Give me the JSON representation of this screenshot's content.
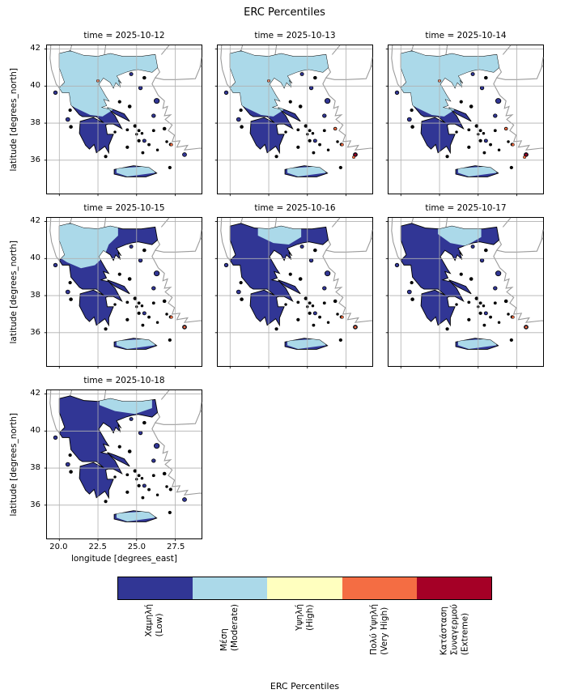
{
  "figure": {
    "title": "ERC Percentiles"
  },
  "axes": {
    "xlabel": "longitude [degrees_east]",
    "ylabel": "latitude [degrees_north]",
    "xticks": [
      "20.0",
      "22.5",
      "25.0",
      "27.5"
    ],
    "yticks": [
      "42",
      "40",
      "38",
      "36"
    ]
  },
  "panels": [
    {
      "title": "time = 2025-10-12",
      "date": "2025-10-12",
      "moderate_extent": "north-large",
      "hotspots": "few"
    },
    {
      "title": "time = 2025-10-13",
      "date": "2025-10-13",
      "moderate_extent": "north-large",
      "hotspots": "southeast"
    },
    {
      "title": "time = 2025-10-14",
      "date": "2025-10-14",
      "moderate_extent": "north-large",
      "hotspots": "southeast"
    },
    {
      "title": "time = 2025-10-15",
      "date": "2025-10-15",
      "moderate_extent": "northwest-medium",
      "hotspots": "se-small"
    },
    {
      "title": "time = 2025-10-16",
      "date": "2025-10-16",
      "moderate_extent": "north-small",
      "hotspots": "se-small"
    },
    {
      "title": "time = 2025-10-17",
      "date": "2025-10-17",
      "moderate_extent": "north-small-east",
      "hotspots": "se-small"
    },
    {
      "title": "time = 2025-10-18",
      "date": "2025-10-18",
      "moderate_extent": "northeast-small",
      "hotspots": "none"
    }
  ],
  "colorbar": {
    "label": "ERC Percentiles",
    "categories": [
      {
        "key": "low",
        "lines": [
          "Χαμηλή",
          "(Low)"
        ],
        "color": "#313695"
      },
      {
        "key": "moderate",
        "lines": [
          "Μέση",
          "(Moderate)"
        ],
        "color": "#abd9e9"
      },
      {
        "key": "high",
        "lines": [
          "Υψηλή",
          "(High)"
        ],
        "color": "#ffffbf"
      },
      {
        "key": "very_high",
        "lines": [
          "Πολύ Υψηλή",
          "(Very High)"
        ],
        "color": "#f46d43"
      },
      {
        "key": "extreme",
        "lines": [
          "Κατάσταση",
          "Συναγερμού",
          "(Extreme)"
        ],
        "color": "#a50026"
      }
    ]
  },
  "map_colors": {
    "low": "#313695",
    "moderate": "#abd9e9",
    "high": "#ffffbf",
    "very_high": "#f46d43",
    "extreme": "#a50026",
    "coastline": "#000000",
    "neighbor_border": "#9b9b9b",
    "gridline": "#b0b0b0",
    "sea": "#ffffff"
  },
  "chart_data": {
    "type": "heatmap",
    "subtype": "faceted-choropleth-map",
    "title": "ERC Percentiles",
    "region": "Greece",
    "facet_variable": "time",
    "facets": [
      "2025-10-12",
      "2025-10-13",
      "2025-10-14",
      "2025-10-15",
      "2025-10-16",
      "2025-10-17",
      "2025-10-18"
    ],
    "facet_grid": {
      "rows": 3,
      "cols": 3,
      "used_panels": 7
    },
    "xlabel": "longitude [degrees_east]",
    "ylabel": "latitude [degrees_north]",
    "xlim": [
      19.2,
      29.2
    ],
    "ylim": [
      34.4,
      42.2
    ],
    "xticks": [
      20.0,
      22.5,
      25.0,
      27.5
    ],
    "yticks": [
      36,
      38,
      40,
      42
    ],
    "grid": true,
    "legend_position": "bottom-horizontal-colorbar",
    "colorbar_label": "ERC Percentiles",
    "categories": [
      {
        "key": "low",
        "label_el": "Χαμηλή",
        "label_en": "Low",
        "color": "#313695"
      },
      {
        "key": "moderate",
        "label_el": "Μέση",
        "label_en": "Moderate",
        "color": "#abd9e9"
      },
      {
        "key": "high",
        "label_el": "Υψηλή",
        "label_en": "High",
        "color": "#ffffbf"
      },
      {
        "key": "very_high",
        "label_el": "Πολύ Υψηλή",
        "label_en": "Very High",
        "color": "#f46d43"
      },
      {
        "key": "extreme",
        "label_el": "Κατάσταση Συναγερμού",
        "label_en": "Extreme",
        "color": "#a50026"
      }
    ],
    "facet_summaries": [
      {
        "date": "2025-10-12",
        "dominant": "Low",
        "moderate": "northern Greece (Epirus, Macedonia, Thessaly) and Crete",
        "high_or_above": "isolated spots in the northwest and eastern Aegean"
      },
      {
        "date": "2025-10-13",
        "dominant": "Low",
        "moderate": "northern Greece and Crete",
        "high_or_above": "isolated Very High / Extreme spots in the Dodecanese"
      },
      {
        "date": "2025-10-14",
        "dominant": "Low",
        "moderate": "northern Greece and Crete",
        "high_or_above": "isolated Very High / Extreme spots in the Dodecanese"
      },
      {
        "date": "2025-10-15",
        "dominant": "Low",
        "moderate": "northwestern Greece and parts of Crete",
        "high_or_above": "isolated spots in the southeastern Aegean"
      },
      {
        "date": "2025-10-16",
        "dominant": "Low",
        "moderate": "small area of central Macedonia and parts of Crete",
        "high_or_above": "isolated spots in the southeastern Aegean"
      },
      {
        "date": "2025-10-17",
        "dominant": "Low",
        "moderate": "small area of central-eastern Macedonia and parts of Crete",
        "high_or_above": "isolated spots in the southeastern Aegean"
      },
      {
        "date": "2025-10-18",
        "dominant": "Low",
        "moderate": "small area of Thrace / northeastern Greece and parts of Crete",
        "high_or_above": "none visible"
      }
    ]
  }
}
